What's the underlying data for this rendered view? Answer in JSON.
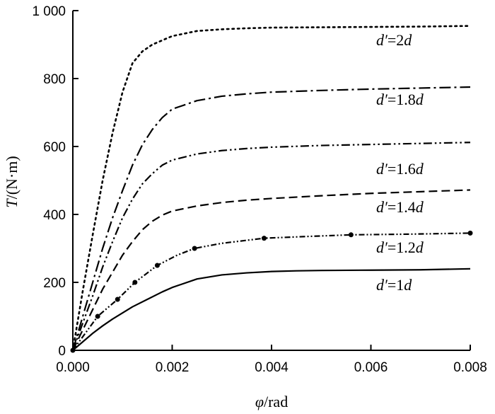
{
  "chart_data": {
    "type": "line",
    "title": "",
    "xlabel": {
      "symbol": "φ",
      "unit": "/rad"
    },
    "ylabel": {
      "symbol": "T",
      "unit": "/(N·m)"
    },
    "xlim": [
      0,
      0.008
    ],
    "ylim": [
      0,
      1000
    ],
    "xticks": [
      0,
      0.002,
      0.004,
      0.006,
      0.008
    ],
    "xtick_labels": [
      "0.000",
      "0.002",
      "0.004",
      "0.006",
      "0.008"
    ],
    "yticks": [
      0,
      200,
      400,
      600,
      800,
      1000
    ],
    "ytick_labels": [
      "0",
      "200",
      "400",
      "600",
      "800",
      "1 000"
    ],
    "grid": false,
    "legend": "inline labels",
    "series": [
      {
        "name": "d′=2d",
        "label": {
          "prime": "d′",
          "coef": "=2",
          "suffix": "d"
        },
        "style": "dotted",
        "x": [
          0,
          0.0002,
          0.0004,
          0.0006,
          0.0008,
          0.001,
          0.0012,
          0.0014,
          0.0016,
          0.002,
          0.0025,
          0.003,
          0.0035,
          0.004,
          0.005,
          0.006,
          0.007,
          0.008
        ],
        "y": [
          0,
          175,
          340,
          500,
          640,
          760,
          845,
          880,
          900,
          925,
          940,
          945,
          948,
          950,
          951,
          952,
          953,
          955
        ]
      },
      {
        "name": "d′=1.8d",
        "label": {
          "prime": "d′",
          "coef": "=1.8",
          "suffix": "d"
        },
        "style": "dash-dot",
        "x": [
          0,
          0.0002,
          0.0004,
          0.0006,
          0.0008,
          0.001,
          0.0012,
          0.0014,
          0.0016,
          0.0018,
          0.002,
          0.0025,
          0.003,
          0.0035,
          0.004,
          0.005,
          0.006,
          0.007,
          0.008
        ],
        "y": [
          0,
          100,
          200,
          300,
          390,
          470,
          545,
          605,
          650,
          685,
          710,
          735,
          748,
          755,
          760,
          765,
          769,
          772,
          775
        ]
      },
      {
        "name": "d′=1.6d",
        "label": {
          "prime": "d′",
          "coef": "=1.6",
          "suffix": "d"
        },
        "style": "dash-dot-dot",
        "x": [
          0,
          0.0002,
          0.0004,
          0.0006,
          0.0008,
          0.001,
          0.0012,
          0.0014,
          0.0016,
          0.0018,
          0.002,
          0.0025,
          0.003,
          0.0035,
          0.004,
          0.005,
          0.006,
          0.007,
          0.008
        ],
        "y": [
          0,
          80,
          160,
          245,
          320,
          390,
          445,
          490,
          520,
          545,
          560,
          578,
          588,
          594,
          598,
          603,
          606,
          609,
          612
        ]
      },
      {
        "name": "d′=1.4d",
        "label": {
          "prime": "d′",
          "coef": "=1.4",
          "suffix": "d"
        },
        "style": "dashed",
        "x": [
          0,
          0.0002,
          0.0004,
          0.0006,
          0.0008,
          0.001,
          0.0012,
          0.0014,
          0.0016,
          0.0018,
          0.002,
          0.0025,
          0.003,
          0.0035,
          0.004,
          0.005,
          0.006,
          0.007,
          0.008
        ],
        "y": [
          0,
          60,
          120,
          180,
          230,
          280,
          320,
          355,
          380,
          398,
          410,
          425,
          435,
          442,
          447,
          455,
          462,
          467,
          472
        ]
      },
      {
        "name": "d′=1.2d",
        "label": {
          "prime": "d′",
          "coef": "=1.2",
          "suffix": "d"
        },
        "style": "dash-dot-dot-markers",
        "x": [
          0,
          0.0002,
          0.0005,
          0.0009,
          0.00125,
          0.0017,
          0.0021,
          0.00245,
          0.003,
          0.00385,
          0.0047,
          0.0056,
          0.0068,
          0.008
        ],
        "y": [
          0,
          40,
          100,
          150,
          200,
          250,
          280,
          300,
          315,
          330,
          335,
          340,
          342,
          345
        ],
        "markers_x": [
          0,
          0.0005,
          0.0009,
          0.00125,
          0.0017,
          0.00245,
          0.00385,
          0.0056,
          0.008
        ],
        "markers_y": [
          0,
          100,
          150,
          200,
          250,
          300,
          330,
          340,
          345
        ]
      },
      {
        "name": "d′=1d",
        "label": {
          "prime": "d′",
          "coef": "=1",
          "suffix": "d"
        },
        "style": "solid",
        "x": [
          0,
          0.0002,
          0.0004,
          0.0006,
          0.0008,
          0.001,
          0.0012,
          0.0015,
          0.0018,
          0.002,
          0.0025,
          0.003,
          0.0035,
          0.004,
          0.0045,
          0.005,
          0.006,
          0.007,
          0.008
        ],
        "y": [
          0,
          25,
          50,
          72,
          92,
          110,
          128,
          150,
          172,
          185,
          210,
          222,
          228,
          232,
          234,
          235,
          236,
          237,
          240
        ]
      }
    ]
  }
}
